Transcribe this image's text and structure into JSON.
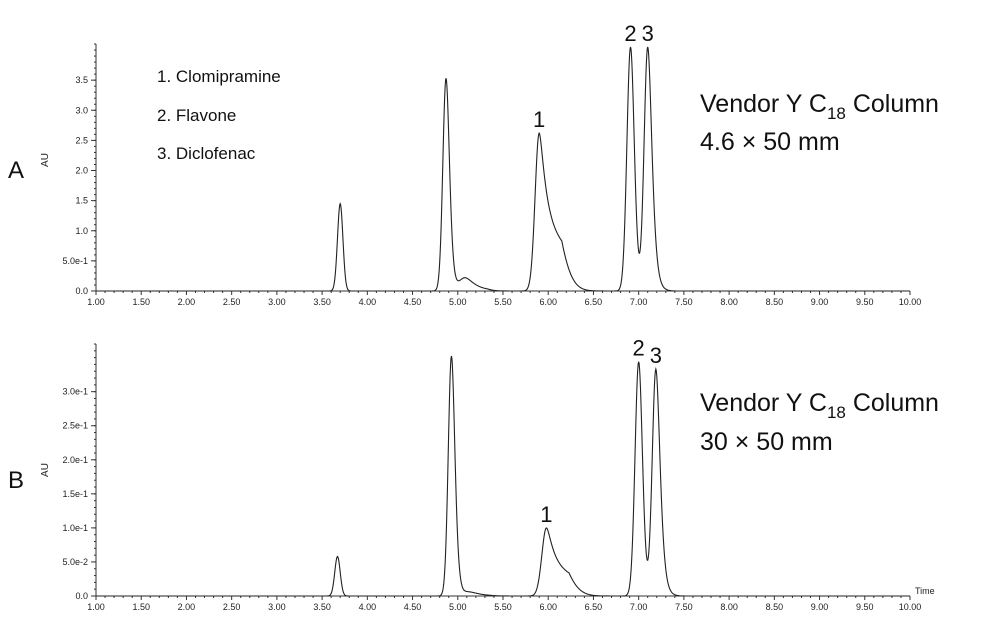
{
  "chart_data": [
    {
      "type": "line",
      "panel": "A",
      "ylabel": "AU",
      "xlim": [
        1.0,
        10.0
      ],
      "ylim": [
        0.0,
        4.1
      ],
      "x_ticks": [
        "1.00",
        "1.50",
        "2.00",
        "2.50",
        "3.00",
        "3.50",
        "4.00",
        "4.50",
        "5.00",
        "5.50",
        "6.00",
        "6.50",
        "7.00",
        "7.50",
        "8.00",
        "8.50",
        "9.00",
        "9.50",
        "10.00"
      ],
      "y_ticks": [
        {
          "value": 0.0,
          "label": "0.0"
        },
        {
          "value": 0.5,
          "label": "5.0e-1"
        },
        {
          "value": 1.0,
          "label": "1.0"
        },
        {
          "value": 1.5,
          "label": "1.5"
        },
        {
          "value": 2.0,
          "label": "2.0"
        },
        {
          "value": 2.5,
          "label": "2.5"
        },
        {
          "value": 3.0,
          "label": "3.0"
        },
        {
          "value": 3.5,
          "label": "3.5"
        }
      ],
      "peaks": [
        {
          "rt": 3.7,
          "height": 1.45,
          "width": 0.03,
          "tail": 0.0
        },
        {
          "rt": 4.87,
          "height": 3.53,
          "width": 0.035,
          "tail": 0.02
        },
        {
          "rt": 5.08,
          "height": 0.22,
          "width": 0.07,
          "tail": 0.06
        },
        {
          "rt": 5.9,
          "height": 2.62,
          "width": 0.045,
          "tail": 0.12
        },
        {
          "rt": 6.91,
          "height": 4.05,
          "width": 0.04,
          "tail": 0.01
        },
        {
          "rt": 7.1,
          "height": 4.05,
          "width": 0.04,
          "tail": 0.03
        }
      ],
      "peak_labels": [
        {
          "text": "1",
          "rt": 5.9,
          "above": 2.62
        },
        {
          "text": "2",
          "rt": 6.91,
          "above": 4.05
        },
        {
          "text": "3",
          "rt": 7.1,
          "above": 4.05
        }
      ],
      "legend": [
        "1. Clomipramine",
        "2. Flavone",
        "3. Diclofenac"
      ],
      "annotation_line1": "Vendor Y C",
      "annotation_sub": "18",
      "annotation_line1_end": " Column",
      "annotation_line2": "4.6 × 50 mm"
    },
    {
      "type": "line",
      "panel": "B",
      "ylabel": "AU",
      "xlabel": "Time",
      "xlim": [
        1.0,
        10.0
      ],
      "ylim": [
        0.0,
        0.37
      ],
      "x_ticks": [
        "1.00",
        "1.50",
        "2.00",
        "2.50",
        "3.00",
        "3.50",
        "4.00",
        "4.50",
        "5.00",
        "5.50",
        "6.00",
        "6.50",
        "7.00",
        "7.50",
        "8.00",
        "8.50",
        "9.00",
        "9.50",
        "10.00"
      ],
      "y_ticks": [
        {
          "value": 0.0,
          "label": "0.0"
        },
        {
          "value": 0.05,
          "label": "5.0e-2"
        },
        {
          "value": 0.1,
          "label": "1.0e-1"
        },
        {
          "value": 0.15,
          "label": "1.5e-1"
        },
        {
          "value": 0.2,
          "label": "2.0e-1"
        },
        {
          "value": 0.25,
          "label": "2.5e-1"
        },
        {
          "value": 0.3,
          "label": "3.0e-1"
        }
      ],
      "peaks": [
        {
          "rt": 3.67,
          "height": 0.058,
          "width": 0.03,
          "tail": 0.0
        },
        {
          "rt": 4.93,
          "height": 0.352,
          "width": 0.035,
          "tail": 0.02
        },
        {
          "rt": 5.12,
          "height": 0.006,
          "width": 0.08,
          "tail": 0.05
        },
        {
          "rt": 5.98,
          "height": 0.1,
          "width": 0.05,
          "tail": 0.12
        },
        {
          "rt": 7.0,
          "height": 0.344,
          "width": 0.04,
          "tail": 0.01
        },
        {
          "rt": 7.19,
          "height": 0.333,
          "width": 0.04,
          "tail": 0.03
        }
      ],
      "peak_labels": [
        {
          "text": "1",
          "rt": 5.98,
          "above": 0.1
        },
        {
          "text": "2",
          "rt": 7.0,
          "above": 0.344
        },
        {
          "text": "3",
          "rt": 7.19,
          "above": 0.333
        }
      ],
      "annotation_line1": "Vendor Y C",
      "annotation_sub": "18",
      "annotation_line1_end": " Column",
      "annotation_line2": "30 × 50 mm"
    }
  ]
}
